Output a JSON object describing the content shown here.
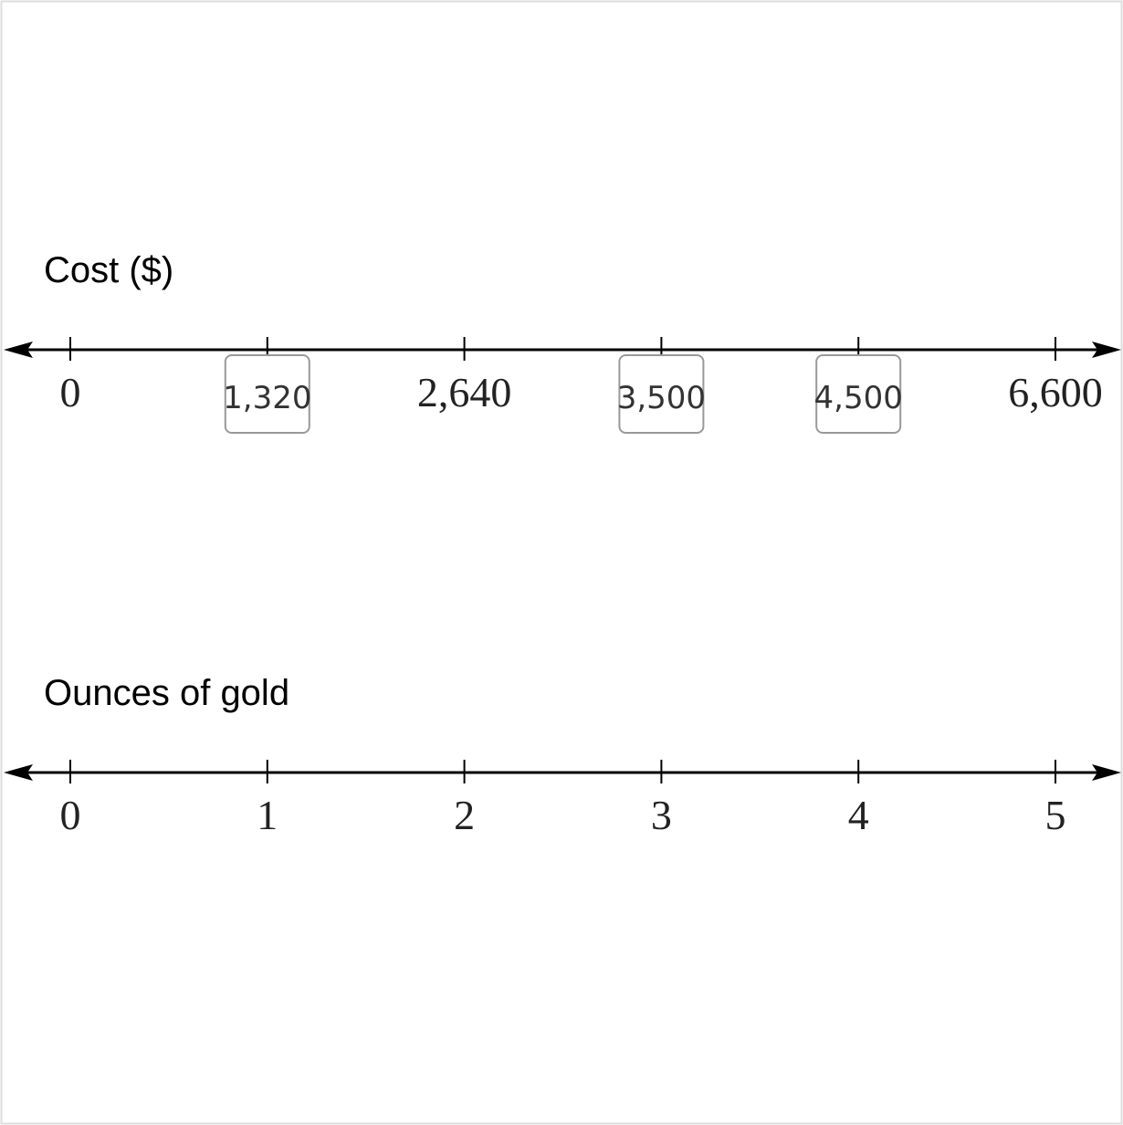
{
  "number_lines": [
    {
      "label": "Cost ($)",
      "ticks": [
        {
          "text": "0",
          "input": false
        },
        {
          "text": "1,320",
          "input": true
        },
        {
          "text": "2,640",
          "input": false
        },
        {
          "text": "3,500",
          "input": true
        },
        {
          "text": "4,500",
          "input": true
        },
        {
          "text": "6,600",
          "input": false
        }
      ]
    },
    {
      "label": "Ounces of gold",
      "ticks": [
        {
          "text": "0",
          "input": false
        },
        {
          "text": "1",
          "input": false
        },
        {
          "text": "2",
          "input": false
        },
        {
          "text": "3",
          "input": false
        },
        {
          "text": "4",
          "input": false
        },
        {
          "text": "5",
          "input": false
        }
      ]
    }
  ]
}
